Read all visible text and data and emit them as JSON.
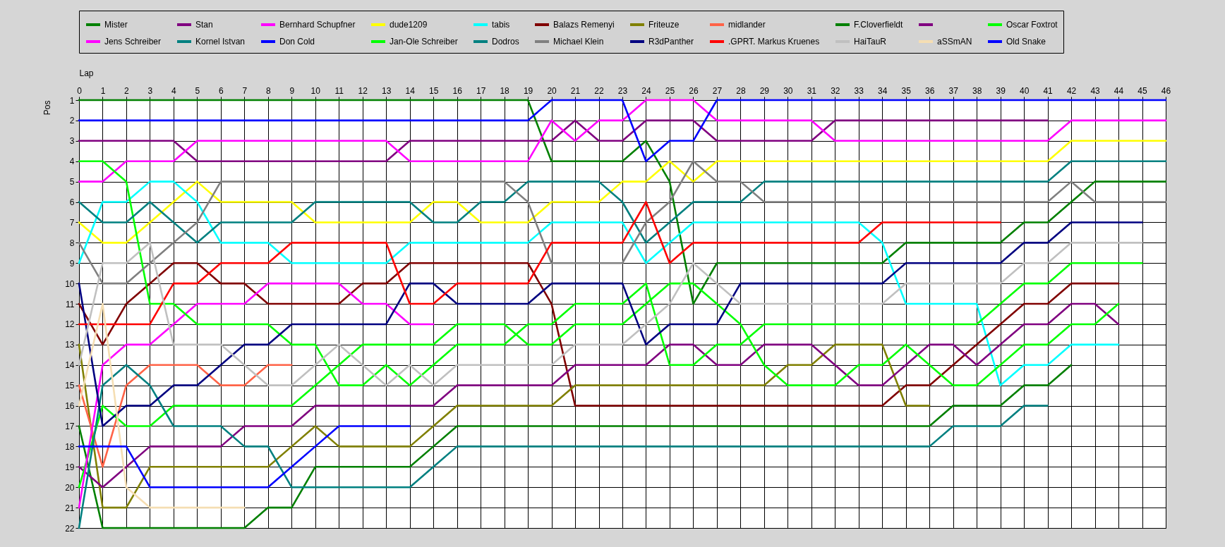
{
  "chart_data": {
    "type": "line",
    "xlabel": "Lap",
    "ylabel": "Pos",
    "legend": "top",
    "grid": true,
    "x": [
      0,
      1,
      2,
      3,
      4,
      5,
      6,
      7,
      8,
      9,
      10,
      11,
      12,
      13,
      14,
      15,
      16,
      17,
      18,
      19,
      20,
      21,
      22,
      23,
      24,
      25,
      26,
      27,
      28,
      29,
      30,
      31,
      32,
      33,
      34,
      35,
      36,
      37,
      38,
      39,
      40,
      41,
      42,
      43,
      44,
      45,
      46
    ],
    "xlim": [
      0,
      46
    ],
    "xticks": [
      0,
      1,
      2,
      3,
      4,
      5,
      6,
      7,
      8,
      9,
      10,
      11,
      12,
      13,
      14,
      15,
      16,
      17,
      18,
      19,
      20,
      21,
      22,
      23,
      24,
      25,
      26,
      27,
      28,
      29,
      30,
      31,
      32,
      33,
      34,
      35,
      36,
      37,
      38,
      39,
      40,
      41,
      42,
      43,
      44,
      45,
      46
    ],
    "ylim": [
      22,
      1
    ],
    "yticks": [
      1,
      2,
      3,
      4,
      5,
      6,
      7,
      8,
      9,
      10,
      11,
      12,
      13,
      14,
      15,
      16,
      17,
      18,
      19,
      20,
      21,
      22
    ],
    "series": [
      {
        "name": "Mister",
        "color": "#008000",
        "values": [
          1,
          1,
          1,
          1,
          1,
          1,
          1,
          1,
          1,
          1,
          1,
          1,
          1,
          1,
          1,
          1,
          1,
          1,
          1,
          1,
          4,
          4,
          4,
          4,
          3,
          5,
          11,
          9,
          9,
          9,
          9,
          9,
          9,
          9,
          9,
          8,
          8,
          8,
          8,
          8,
          7,
          7,
          6,
          5,
          5,
          5,
          5
        ]
      },
      {
        "name": "Stan",
        "color": "#800080",
        "values": [
          3,
          3,
          3,
          3,
          3,
          4,
          4,
          4,
          4,
          4,
          4,
          4,
          4,
          4,
          3,
          3,
          3,
          3,
          3,
          3,
          3,
          2,
          3,
          3,
          2,
          2,
          2,
          3,
          3,
          3,
          3,
          3,
          2,
          2,
          2,
          2,
          2,
          2,
          2,
          2,
          2,
          2,
          null,
          null,
          null,
          null,
          null
        ]
      },
      {
        "name": "Bernhard Schupfner",
        "color": "#ff00ff",
        "values": [
          5,
          5,
          4,
          4,
          4,
          3,
          3,
          3,
          3,
          3,
          3,
          3,
          3,
          3,
          4,
          4,
          4,
          4,
          4,
          4,
          2,
          3,
          2,
          2,
          1,
          1,
          1,
          2,
          2,
          2,
          2,
          2,
          3,
          3,
          3,
          3,
          3,
          3,
          3,
          3,
          3,
          3,
          2,
          2,
          2,
          2,
          2
        ]
      },
      {
        "name": "dude1209",
        "color": "#ffff00",
        "values": [
          7,
          8,
          8,
          7,
          6,
          5,
          6,
          6,
          6,
          6,
          7,
          7,
          7,
          7,
          7,
          6,
          6,
          7,
          7,
          7,
          6,
          6,
          6,
          5,
          5,
          4,
          5,
          4,
          4,
          4,
          4,
          4,
          4,
          4,
          4,
          4,
          4,
          4,
          4,
          4,
          4,
          4,
          3,
          3,
          3,
          3,
          3
        ]
      },
      {
        "name": "tabis",
        "color": "#00ffff",
        "values": [
          9,
          6,
          6,
          5,
          5,
          6,
          8,
          8,
          8,
          9,
          9,
          9,
          9,
          9,
          8,
          8,
          8,
          8,
          8,
          8,
          7,
          7,
          7,
          7,
          9,
          8,
          7,
          7,
          7,
          7,
          7,
          7,
          7,
          7,
          8,
          11,
          11,
          11,
          11,
          15,
          14,
          14,
          13,
          13,
          13,
          null,
          null
        ]
      },
      {
        "name": "Balazs Remenyi",
        "color": "#800000",
        "values": [
          11,
          13,
          11,
          10,
          9,
          9,
          10,
          10,
          11,
          11,
          11,
          11,
          10,
          10,
          9,
          9,
          9,
          9,
          9,
          9,
          11,
          16,
          16,
          16,
          16,
          16,
          16,
          16,
          16,
          16,
          16,
          16,
          16,
          16,
          16,
          15,
          15,
          14,
          13,
          12,
          11,
          11,
          10,
          10,
          10,
          null,
          null
        ]
      },
      {
        "name": "Friteuze",
        "color": "#808000",
        "values": [
          13,
          21,
          21,
          19,
          19,
          19,
          19,
          19,
          19,
          18,
          17,
          18,
          18,
          18,
          18,
          17,
          16,
          16,
          16,
          16,
          16,
          15,
          15,
          15,
          15,
          15,
          15,
          15,
          15,
          15,
          14,
          14,
          13,
          13,
          13,
          16,
          16,
          null,
          null,
          null,
          null,
          null,
          null,
          null,
          null,
          null,
          null
        ]
      },
      {
        "name": "midlander",
        "color": "#ff6347",
        "values": [
          15,
          19,
          15,
          14,
          14,
          14,
          15,
          15,
          14,
          14,
          null,
          null,
          null,
          null,
          null,
          null,
          null,
          null,
          null,
          null,
          null,
          null,
          null,
          null,
          null,
          null,
          null,
          null,
          null,
          null,
          null,
          null,
          null,
          null,
          null,
          null,
          null,
          null,
          null,
          null,
          null,
          null,
          null,
          null,
          null,
          null,
          null
        ]
      },
      {
        "name": "F.Cloverfieldt",
        "color": "#008000",
        "values": [
          17,
          22,
          22,
          22,
          22,
          22,
          22,
          22,
          21,
          21,
          19,
          19,
          19,
          19,
          19,
          18,
          17,
          17,
          17,
          17,
          17,
          17,
          17,
          17,
          17,
          17,
          17,
          17,
          17,
          17,
          17,
          17,
          17,
          17,
          17,
          17,
          17,
          16,
          16,
          16,
          15,
          15,
          14,
          null,
          null,
          null,
          null
        ]
      },
      {
        "name": null,
        "color": "#800080",
        "values": [
          19,
          20,
          19,
          18,
          18,
          18,
          18,
          17,
          17,
          17,
          16,
          16,
          16,
          16,
          16,
          16,
          15,
          15,
          15,
          15,
          15,
          14,
          14,
          14,
          14,
          13,
          13,
          14,
          14,
          13,
          13,
          13,
          14,
          15,
          15,
          14,
          13,
          13,
          14,
          13,
          12,
          12,
          11,
          11,
          12,
          null,
          null
        ]
      },
      {
        "name": "Oscar Foxtrot",
        "color": "#00ff00",
        "values": [
          20,
          16,
          17,
          17,
          16,
          16,
          16,
          16,
          16,
          16,
          15,
          14,
          13,
          13,
          13,
          13,
          12,
          12,
          12,
          13,
          13,
          12,
          12,
          12,
          11,
          10,
          10,
          11,
          12,
          14,
          15,
          15,
          15,
          14,
          14,
          13,
          14,
          15,
          15,
          14,
          13,
          13,
          12,
          12,
          11,
          null,
          null
        ]
      },
      {
        "name": "Jens Schreiber",
        "color": "#ff00ff",
        "values": [
          21,
          14,
          13,
          13,
          12,
          11,
          11,
          11,
          10,
          10,
          10,
          10,
          11,
          11,
          12,
          12,
          null,
          null,
          null,
          null,
          null,
          null,
          null,
          null,
          null,
          null,
          null,
          null,
          null,
          null,
          null,
          null,
          null,
          null,
          null,
          null,
          null,
          null,
          null,
          null,
          null,
          null,
          null,
          null,
          null,
          null,
          null
        ]
      },
      {
        "name": "Kornel Istvan",
        "color": "#008080",
        "values": [
          22,
          15,
          14,
          15,
          17,
          17,
          17,
          18,
          18,
          20,
          20,
          20,
          20,
          20,
          20,
          19,
          18,
          18,
          18,
          18,
          18,
          18,
          18,
          18,
          18,
          18,
          18,
          18,
          18,
          18,
          18,
          18,
          18,
          18,
          18,
          18,
          18,
          17,
          17,
          17,
          16,
          16,
          null,
          null,
          null,
          null,
          null
        ]
      },
      {
        "name": "Don Cold",
        "color": "#0000ff",
        "values": [
          2,
          2,
          2,
          2,
          2,
          2,
          2,
          2,
          2,
          2,
          2,
          2,
          2,
          2,
          2,
          2,
          2,
          2,
          2,
          2,
          1,
          1,
          1,
          1,
          4,
          3,
          3,
          1,
          1,
          1,
          1,
          1,
          1,
          1,
          1,
          1,
          1,
          1,
          1,
          1,
          1,
          1,
          1,
          1,
          1,
          1,
          1
        ]
      },
      {
        "name": "Jan-Ole Schreiber",
        "color": "#00ff00",
        "values": [
          4,
          4,
          5,
          11,
          11,
          12,
          12,
          12,
          12,
          13,
          13,
          15,
          15,
          14,
          15,
          14,
          13,
          13,
          13,
          12,
          12,
          11,
          11,
          11,
          10,
          14,
          14,
          13,
          13,
          12,
          12,
          12,
          12,
          12,
          12,
          12,
          12,
          12,
          12,
          11,
          10,
          10,
          9,
          9,
          9,
          9,
          null
        ]
      },
      {
        "name": "Dodros",
        "color": "#008080",
        "values": [
          6,
          7,
          7,
          6,
          7,
          8,
          7,
          7,
          7,
          7,
          6,
          6,
          6,
          6,
          6,
          7,
          7,
          6,
          6,
          5,
          5,
          5,
          5,
          6,
          8,
          7,
          6,
          6,
          6,
          5,
          5,
          5,
          5,
          5,
          5,
          5,
          5,
          5,
          5,
          5,
          5,
          5,
          4,
          4,
          4,
          4,
          4
        ]
      },
      {
        "name": "Michael Klein",
        "color": "#808080",
        "values": [
          8,
          10,
          10,
          9,
          8,
          7,
          5,
          5,
          5,
          5,
          5,
          5,
          5,
          5,
          5,
          5,
          5,
          5,
          5,
          6,
          9,
          9,
          9,
          9,
          7,
          6,
          4,
          5,
          5,
          6,
          6,
          6,
          6,
          6,
          6,
          6,
          6,
          6,
          6,
          6,
          6,
          6,
          5,
          6,
          6,
          6,
          6
        ]
      },
      {
        "name": "R3dPanther",
        "color": "#000080",
        "values": [
          10,
          17,
          16,
          16,
          15,
          15,
          14,
          13,
          13,
          12,
          12,
          12,
          12,
          12,
          10,
          10,
          11,
          11,
          11,
          11,
          10,
          10,
          10,
          10,
          13,
          12,
          12,
          12,
          10,
          10,
          10,
          10,
          10,
          10,
          10,
          9,
          9,
          9,
          9,
          9,
          8,
          8,
          7,
          7,
          7,
          7,
          null
        ]
      },
      {
        "name": ".GPRT. Markus Kruenes",
        "color": "#ff0000",
        "values": [
          12,
          12,
          12,
          12,
          10,
          10,
          9,
          9,
          9,
          8,
          8,
          8,
          8,
          8,
          11,
          11,
          10,
          10,
          10,
          10,
          8,
          8,
          8,
          8,
          6,
          9,
          8,
          8,
          8,
          8,
          8,
          8,
          8,
          8,
          7,
          7,
          7,
          7,
          7,
          7,
          null,
          null,
          null,
          null,
          null,
          null,
          null
        ]
      },
      {
        "name": "HaiTauR",
        "color": "#c0c0c0",
        "values": [
          14,
          9,
          9,
          8,
          13,
          13,
          13,
          14,
          15,
          15,
          14,
          13,
          14,
          15,
          14,
          15,
          14,
          14,
          14,
          14,
          14,
          13,
          13,
          13,
          12,
          11,
          9,
          10,
          11,
          11,
          11,
          11,
          11,
          11,
          11,
          10,
          10,
          10,
          10,
          10,
          9,
          9,
          8,
          8,
          8,
          8,
          null
        ]
      },
      {
        "name": "aSSmAN",
        "color": "#f5deb3",
        "values": [
          16,
          11,
          20,
          21,
          21,
          21,
          21,
          21,
          null,
          null,
          null,
          null,
          null,
          null,
          null,
          null,
          null,
          null,
          null,
          null,
          null,
          null,
          null,
          null,
          null,
          null,
          null,
          null,
          null,
          null,
          null,
          null,
          null,
          null,
          null,
          null,
          null,
          null,
          null,
          null,
          null,
          null,
          null,
          null,
          null,
          null,
          null
        ]
      },
      {
        "name": "Old Snake",
        "color": "#0000ff",
        "values": [
          18,
          18,
          18,
          20,
          20,
          20,
          20,
          20,
          20,
          19,
          18,
          17,
          17,
          17,
          17,
          null,
          null,
          null,
          null,
          null,
          null,
          null,
          null,
          null,
          null,
          null,
          null,
          null,
          null,
          null,
          null,
          null,
          null,
          null,
          null,
          null,
          null,
          null,
          null,
          null,
          null,
          null,
          null,
          null,
          null,
          null,
          null
        ]
      }
    ]
  }
}
